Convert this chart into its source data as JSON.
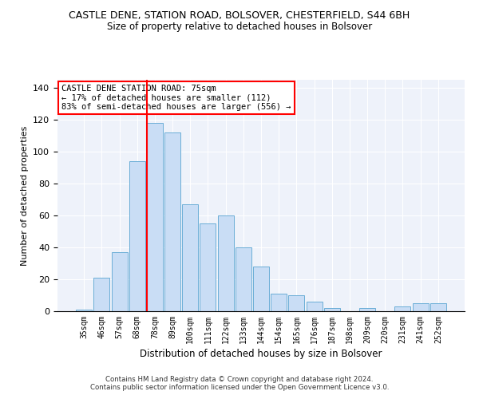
{
  "title": "CASTLE DENE, STATION ROAD, BOLSOVER, CHESTERFIELD, S44 6BH",
  "subtitle": "Size of property relative to detached houses in Bolsover",
  "xlabel": "Distribution of detached houses by size in Bolsover",
  "ylabel": "Number of detached properties",
  "categories": [
    "35sqm",
    "46sqm",
    "57sqm",
    "68sqm",
    "78sqm",
    "89sqm",
    "100sqm",
    "111sqm",
    "122sqm",
    "133sqm",
    "144sqm",
    "154sqm",
    "165sqm",
    "176sqm",
    "187sqm",
    "198sqm",
    "209sqm",
    "220sqm",
    "231sqm",
    "241sqm",
    "252sqm"
  ],
  "values": [
    1,
    21,
    37,
    94,
    118,
    112,
    67,
    55,
    60,
    40,
    28,
    11,
    10,
    6,
    2,
    0,
    2,
    0,
    3,
    5,
    5
  ],
  "bar_color": "#c9ddf5",
  "bar_edge_color": "#6baed6",
  "marker_label": "CASTLE DENE STATION ROAD: 75sqm",
  "annotation_line1": "← 17% of detached houses are smaller (112)",
  "annotation_line2": "83% of semi-detached houses are larger (556) →",
  "annotation_box_color": "white",
  "annotation_box_edge": "red",
  "vline_color": "red",
  "vline_x_index": 3.55,
  "footer1": "Contains HM Land Registry data © Crown copyright and database right 2024.",
  "footer2": "Contains public sector information licensed under the Open Government Licence v3.0.",
  "ylim": [
    0,
    145
  ],
  "background_color": "#eef2fa"
}
